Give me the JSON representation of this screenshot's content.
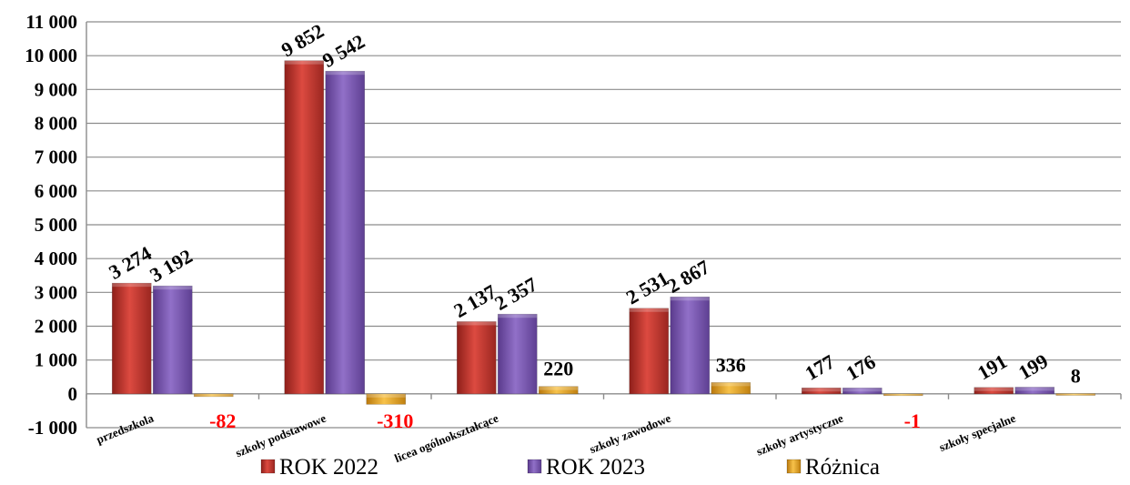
{
  "chart_data": {
    "type": "bar",
    "title": "",
    "xlabel": "",
    "ylabel": "",
    "ylim": [
      -1000,
      11000
    ],
    "yticks": [
      -1000,
      0,
      1000,
      2000,
      3000,
      4000,
      5000,
      6000,
      7000,
      8000,
      9000,
      10000,
      11000
    ],
    "ytick_labels": [
      "-1 000",
      "0",
      "1 000",
      "2 000",
      "3 000",
      "4 000",
      "5 000",
      "6 000",
      "7 000",
      "8 000",
      "9 000",
      "10 000",
      "11 000"
    ],
    "grid": true,
    "legend_position": "bottom",
    "categories": [
      "przedszkola",
      "szkoły podstawowe",
      "licea ogólnokształcące",
      "szkoły zawodowe",
      "szkoły artystyczne",
      "szkoły specjalne"
    ],
    "series": [
      {
        "name": "ROK 2022",
        "color": "#c0392b",
        "values": [
          3274,
          9852,
          2137,
          2531,
          177,
          191
        ],
        "labels": [
          "3 274",
          "9 852",
          "2 137",
          "2 531",
          "177",
          "191"
        ]
      },
      {
        "name": "ROK 2023",
        "color": "#7d55b3",
        "values": [
          3192,
          9542,
          2357,
          2867,
          176,
          199
        ],
        "labels": [
          "3 192",
          "9 542",
          "2 357",
          "2 867",
          "176",
          "199"
        ]
      },
      {
        "name": "Różnica",
        "color": "#e3a21a",
        "values": [
          -82,
          -310,
          220,
          336,
          -1,
          8
        ],
        "labels": [
          "-82",
          "-310",
          "220",
          "336",
          "-1",
          "8"
        ]
      }
    ]
  }
}
